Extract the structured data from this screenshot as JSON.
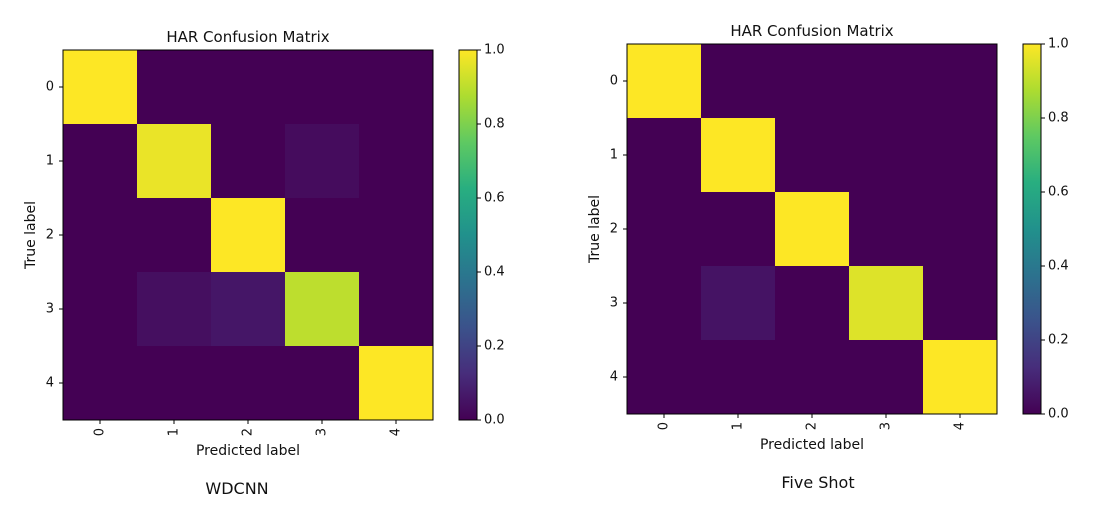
{
  "chart_data": [
    {
      "type": "heatmap",
      "title": "HAR Confusion Matrix",
      "xlabel": "Predicted label",
      "ylabel": "True label",
      "caption": "WDCNN",
      "x_ticks": [
        "0",
        "1",
        "2",
        "3",
        "4"
      ],
      "y_ticks": [
        "0",
        "1",
        "2",
        "3",
        "4"
      ],
      "matrix": [
        [
          1.0,
          0.0,
          0.0,
          0.0,
          0.0
        ],
        [
          0.0,
          0.97,
          0.0,
          0.03,
          0.0
        ],
        [
          0.0,
          0.0,
          1.0,
          0.0,
          0.0
        ],
        [
          0.0,
          0.04,
          0.06,
          0.9,
          0.0
        ],
        [
          0.0,
          0.0,
          0.0,
          0.0,
          1.0
        ]
      ],
      "colormap": "viridis",
      "colorbar": {
        "range": [
          0.0,
          1.0
        ],
        "ticks": [
          "0.0",
          "0.2",
          "0.4",
          "0.6",
          "0.8",
          "1.0"
        ]
      }
    },
    {
      "type": "heatmap",
      "title": "HAR Confusion Matrix",
      "xlabel": "Predicted label",
      "ylabel": "True label",
      "caption": "Five Shot",
      "x_ticks": [
        "0",
        "1",
        "2",
        "3",
        "4"
      ],
      "y_ticks": [
        "0",
        "1",
        "2",
        "3",
        "4"
      ],
      "matrix": [
        [
          1.0,
          0.0,
          0.0,
          0.0,
          0.0
        ],
        [
          0.0,
          1.0,
          0.0,
          0.0,
          0.0
        ],
        [
          0.0,
          0.0,
          1.0,
          0.0,
          0.0
        ],
        [
          0.0,
          0.05,
          0.0,
          0.95,
          0.0
        ],
        [
          0.0,
          0.0,
          0.0,
          0.0,
          1.0
        ]
      ],
      "colormap": "viridis",
      "colorbar": {
        "range": [
          0.0,
          1.0
        ],
        "ticks": [
          "0.0",
          "0.2",
          "0.4",
          "0.6",
          "0.8",
          "1.0"
        ]
      }
    }
  ]
}
